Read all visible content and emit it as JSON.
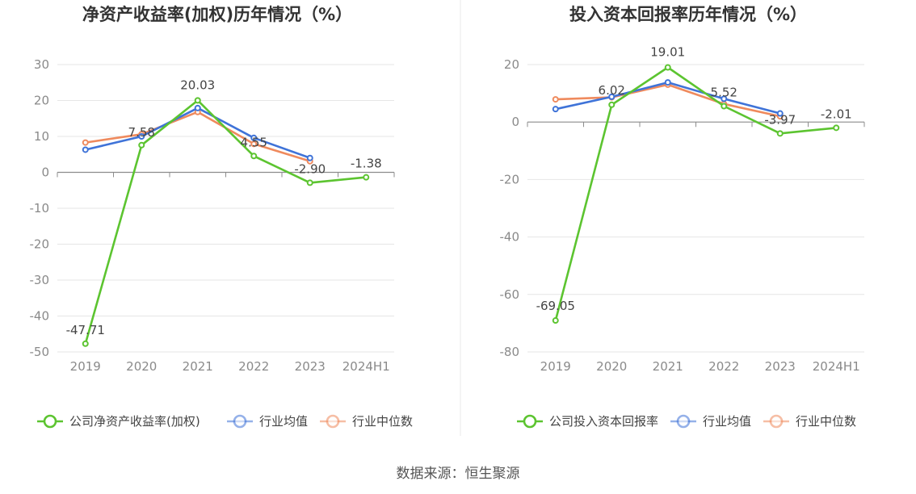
{
  "source_label": "数据来源：恒生聚源",
  "colors": {
    "company": "#5cc430",
    "industry_avg": "#3f73d8",
    "industry_median": "#ef8a5d",
    "grid": "#e6e6e6",
    "axis": "#8c8c8c",
    "divider": "#e8e8e8"
  },
  "chart_data": [
    {
      "type": "line",
      "title": "净资产收益率(加权)历年情况（%）",
      "categories": [
        "2019",
        "2020",
        "2021",
        "2022",
        "2023",
        "2024H1"
      ],
      "y_ticks": [
        30,
        20,
        10,
        0,
        -10,
        -20,
        -30,
        -40,
        -50
      ],
      "ylim": [
        -50,
        30
      ],
      "grid": true,
      "legend_position": "bottom",
      "series": [
        {
          "key": "company",
          "name": "公司净资产收益率(加权)",
          "values": [
            -47.71,
            7.58,
            20.03,
            4.55,
            -2.9,
            -1.38
          ],
          "labels": [
            "-47.71",
            "7.58",
            "20.03",
            "4.55",
            "-2.90",
            "-1.38"
          ]
        },
        {
          "key": "industry_avg",
          "name": "行业均值",
          "values": [
            6.3,
            10.0,
            17.9,
            9.6,
            4.0,
            null
          ]
        },
        {
          "key": "industry_median",
          "name": "行业中位数",
          "values": [
            8.3,
            10.6,
            16.8,
            7.9,
            3.1,
            null
          ]
        }
      ]
    },
    {
      "type": "line",
      "title": "投入资本回报率历年情况（%）",
      "categories": [
        "2019",
        "2020",
        "2021",
        "2022",
        "2023",
        "2024H1"
      ],
      "y_ticks": [
        20,
        0,
        -20,
        -40,
        -60,
        -80
      ],
      "ylim": [
        -80,
        20
      ],
      "grid": true,
      "legend_position": "bottom",
      "series": [
        {
          "key": "company",
          "name": "公司投入资本回报率",
          "values": [
            -69.05,
            6.02,
            19.01,
            5.52,
            -3.97,
            -2.01
          ],
          "labels": [
            "-69.05",
            "6.02",
            "19.01",
            "5.52",
            "-3.97",
            "-2.01"
          ]
        },
        {
          "key": "industry_avg",
          "name": "行业均值",
          "values": [
            4.5,
            8.8,
            13.8,
            8.1,
            3.0,
            null
          ]
        },
        {
          "key": "industry_median",
          "name": "行业中位数",
          "values": [
            7.9,
            8.6,
            13.0,
            6.3,
            2.0,
            null
          ]
        }
      ]
    }
  ]
}
